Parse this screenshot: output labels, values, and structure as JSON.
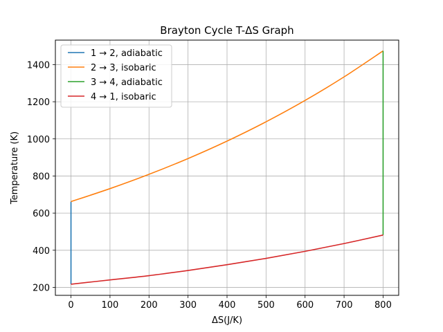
{
  "chart_data": {
    "type": "line",
    "title": "Brayton Cycle T-ΔS Graph",
    "xlabel": "ΔS(J/K)",
    "ylabel": "Temperature (K)",
    "xlim": [
      -40,
      840
    ],
    "ylim": [
      157,
      1532
    ],
    "xticks": [
      0,
      100,
      200,
      300,
      400,
      500,
      600,
      700,
      800
    ],
    "yticks": [
      200,
      400,
      600,
      800,
      1000,
      1200,
      1400
    ],
    "grid": true,
    "legend_position": "top-left",
    "series": [
      {
        "name": "1 → 2, adiabatic",
        "color": "#1f77b4",
        "x": [
          0,
          0
        ],
        "y": [
          217,
          662
        ]
      },
      {
        "name": "2 → 3, isobaric",
        "color": "#ff7f0e",
        "x": [
          0,
          100,
          200,
          300,
          400,
          500,
          600,
          700,
          800
        ],
        "y": [
          662,
          732,
          809,
          894,
          988,
          1092,
          1207,
          1334,
          1474
        ]
      },
      {
        "name": "3 → 4, adiabatic",
        "color": "#2ca02c",
        "x": [
          800,
          800
        ],
        "y": [
          1474,
          482
        ]
      },
      {
        "name": "4 → 1, isobaric",
        "color": "#d62728",
        "x": [
          800,
          700,
          600,
          500,
          400,
          300,
          200,
          100,
          0
        ],
        "y": [
          482,
          436,
          394,
          356,
          322,
          291,
          263,
          240,
          217
        ]
      }
    ]
  }
}
